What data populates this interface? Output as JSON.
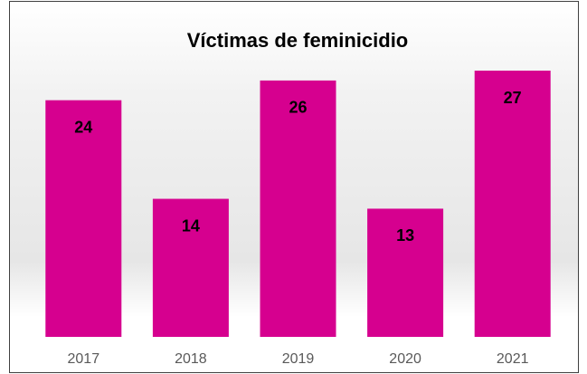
{
  "chart_data": {
    "type": "bar",
    "title": "Víctimas de feminicidio",
    "categories": [
      "2017",
      "2018",
      "2019",
      "2020",
      "2021"
    ],
    "values": [
      24,
      14,
      26,
      13,
      27
    ],
    "color": "#d6008f"
  }
}
